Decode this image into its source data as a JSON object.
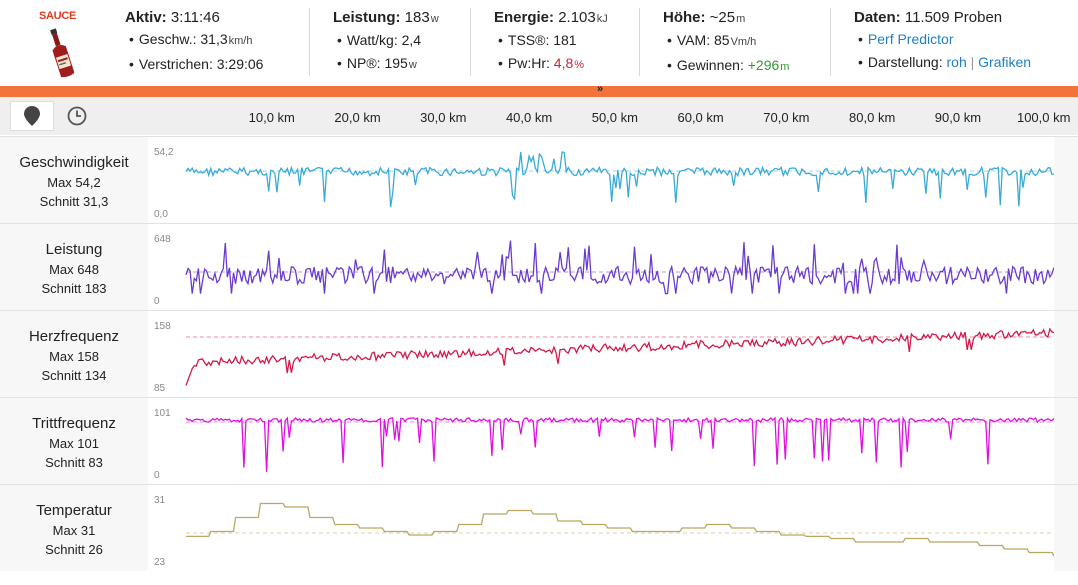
{
  "header": {
    "logo_text": "SAUCE",
    "aktiv": {
      "label": "Aktiv:",
      "value": "3:11:46",
      "rows": [
        {
          "label": "Geschw.:",
          "value": "31,3",
          "unit": "km/h"
        },
        {
          "label": "Verstrichen:",
          "value": "3:29:06",
          "unit": ""
        }
      ]
    },
    "leistung": {
      "label": "Leistung:",
      "value": "183",
      "unit": "w",
      "rows": [
        {
          "label": "Watt/kg:",
          "value": "2,4",
          "unit": ""
        },
        {
          "label": "NP®:",
          "value": "195",
          "unit": "w"
        }
      ]
    },
    "energie": {
      "label": "Energie:",
      "value": "2.103",
      "unit": "kJ",
      "rows": [
        {
          "label": "TSS®:",
          "value": "181",
          "unit": ""
        },
        {
          "label": "Pw:Hr:",
          "value": "4,8",
          "unit": "%"
        }
      ]
    },
    "hoehe": {
      "label": "Höhe:",
      "value": "~25",
      "unit": "m",
      "rows": [
        {
          "label": "VAM:",
          "value": "85",
          "unit": "Vm/h"
        },
        {
          "label": "Gewinnen:",
          "value": "+296",
          "unit": "m"
        }
      ]
    },
    "daten": {
      "label": "Daten:",
      "value": "11.509 Proben",
      "perf_predictor": "Perf Predictor",
      "darstellung_label": "Darstellung:",
      "darstellung_raw": "roh",
      "darstellung_sep": "|",
      "darstellung_graphs": "Grafiken"
    }
  },
  "toolbar": {
    "distance_icon": "map-pin-icon",
    "time_icon": "clock-icon",
    "ticks": [
      "10,0 km",
      "20,0 km",
      "30,0 km",
      "40,0 km",
      "50,0 km",
      "60,0 km",
      "70,0 km",
      "80,0 km",
      "90,0 km",
      "100,0 km"
    ]
  },
  "panels": [
    {
      "key": "speed",
      "name": "Geschwindigkeit",
      "max": "Max 54,2",
      "avg": "Schnitt 31,3",
      "ymax": "54,2",
      "ymin": "0,0",
      "color": "#3aaad8"
    },
    {
      "key": "power",
      "name": "Leistung",
      "max": "Max 648",
      "avg": "Schnitt 183",
      "ymax": "648",
      "ymin": "0",
      "color": "#6a3bcf"
    },
    {
      "key": "hr",
      "name": "Herzfrequenz",
      "max": "Max 158",
      "avg": "Schnitt 134",
      "ymax": "158",
      "ymin": "85",
      "color": "#d11a4a"
    },
    {
      "key": "cadence",
      "name": "Trittfrequenz",
      "max": "Max 101",
      "avg": "Schnitt 83",
      "ymax": "101",
      "ymin": "0",
      "color": "#e010e0"
    },
    {
      "key": "temp",
      "name": "Temperatur",
      "max": "Max 31",
      "avg": "Schnitt 26",
      "ymax": "31",
      "ymin": "23",
      "color": "#b8a860"
    }
  ]
}
